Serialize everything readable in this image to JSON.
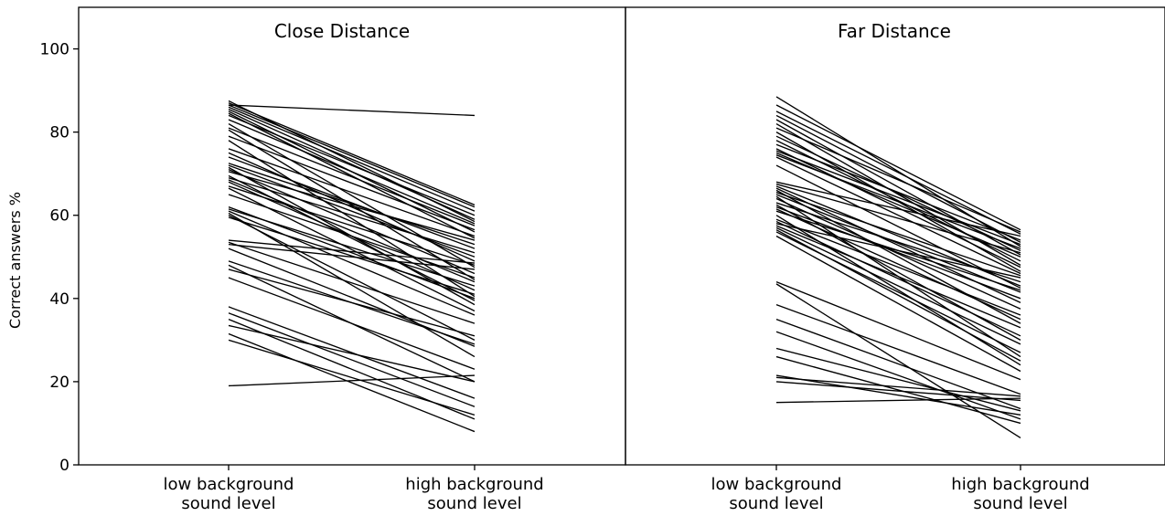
{
  "chart_data": {
    "type": "line",
    "ylabel": "Correct answers %",
    "ylim": [
      0,
      110
    ],
    "yticks": [
      0,
      20,
      40,
      60,
      80,
      100
    ],
    "categories": [
      "low background sound level",
      "high background sound level"
    ],
    "category_lines": [
      [
        "low background",
        "sound level"
      ],
      [
        "high background",
        "sound level"
      ]
    ],
    "grid": false,
    "legend": "none",
    "line_color": "#000000",
    "panels": [
      {
        "title": "Close Distance",
        "lines": [
          [
            19,
            21.5
          ],
          [
            30,
            12
          ],
          [
            31.5,
            8
          ],
          [
            33.5,
            20
          ],
          [
            35,
            11
          ],
          [
            36.5,
            14
          ],
          [
            38,
            16
          ],
          [
            45,
            23
          ],
          [
            47,
            31
          ],
          [
            48,
            20
          ],
          [
            49,
            29
          ],
          [
            52,
            28.5
          ],
          [
            53,
            47
          ],
          [
            53.5,
            34
          ],
          [
            54,
            48.5
          ],
          [
            59.5,
            41
          ],
          [
            60,
            30
          ],
          [
            60.5,
            26
          ],
          [
            61,
            36
          ],
          [
            61.5,
            43
          ],
          [
            62,
            40
          ],
          [
            65,
            45
          ],
          [
            66.5,
            37
          ],
          [
            67,
            48
          ],
          [
            68,
            42
          ],
          [
            68.5,
            44
          ],
          [
            69,
            51
          ],
          [
            69.5,
            39.5
          ],
          [
            70.5,
            54
          ],
          [
            71,
            46
          ],
          [
            71.5,
            38.5
          ],
          [
            72,
            50
          ],
          [
            72.5,
            53
          ],
          [
            74,
            52
          ],
          [
            75,
            49
          ],
          [
            76,
            55
          ],
          [
            78,
            40.5
          ],
          [
            79,
            56.5
          ],
          [
            80.5,
            44.5
          ],
          [
            81,
            57.5
          ],
          [
            82,
            47.5
          ],
          [
            83,
            58
          ],
          [
            84,
            60
          ],
          [
            84.5,
            54.5
          ],
          [
            85,
            56
          ],
          [
            85.5,
            59
          ],
          [
            86,
            61
          ],
          [
            86.5,
            62
          ],
          [
            87,
            62.5
          ],
          [
            87.5,
            58.5
          ],
          [
            86.5,
            84
          ]
        ]
      },
      {
        "title": "Far Distance",
        "lines": [
          [
            15,
            16
          ],
          [
            20,
            15.5
          ],
          [
            21,
            16.5
          ],
          [
            21.5,
            12
          ],
          [
            26,
            10
          ],
          [
            28,
            13
          ],
          [
            32,
            11
          ],
          [
            35,
            13.5
          ],
          [
            38.5,
            17
          ],
          [
            43.5,
            6.5
          ],
          [
            44,
            20.5
          ],
          [
            55,
            22.5
          ],
          [
            56,
            27
          ],
          [
            56.5,
            25
          ],
          [
            57,
            29
          ],
          [
            57.5,
            33
          ],
          [
            58,
            45
          ],
          [
            58.5,
            31
          ],
          [
            59,
            36
          ],
          [
            60,
            24
          ],
          [
            61,
            42
          ],
          [
            61.5,
            35
          ],
          [
            62,
            40
          ],
          [
            62.5,
            30
          ],
          [
            63,
            44
          ],
          [
            64,
            37.5
          ],
          [
            64.5,
            26
          ],
          [
            65,
            41.5
          ],
          [
            65.5,
            45.5
          ],
          [
            66,
            34
          ],
          [
            66.5,
            39
          ],
          [
            67,
            43
          ],
          [
            67.5,
            51
          ],
          [
            68,
            55
          ],
          [
            72,
            42.5
          ],
          [
            74,
            46
          ],
          [
            74.5,
            52
          ],
          [
            75,
            50
          ],
          [
            75.5,
            53
          ],
          [
            76,
            47.5
          ],
          [
            77,
            54
          ],
          [
            78,
            49
          ],
          [
            79,
            51.5
          ],
          [
            80,
            46.5
          ],
          [
            81,
            56
          ],
          [
            82,
            48
          ],
          [
            83,
            50.5
          ],
          [
            84,
            53.5
          ],
          [
            85,
            55.5
          ],
          [
            86.5,
            56.5
          ],
          [
            88.5,
            52.5
          ]
        ]
      }
    ]
  }
}
